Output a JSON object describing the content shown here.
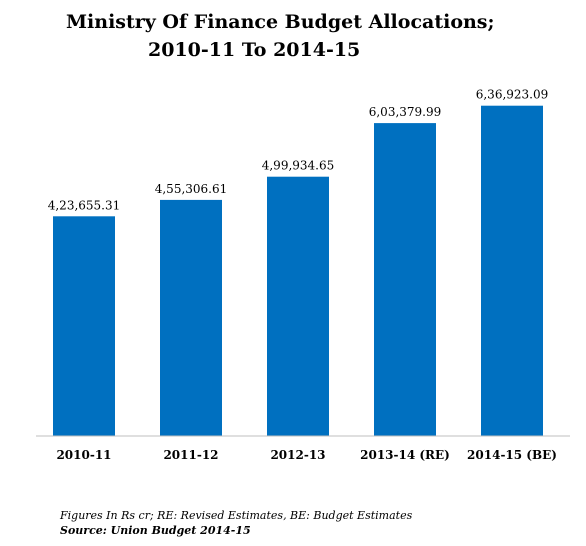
{
  "title_line1": "Ministry Of Finance Budget Allocations;",
  "title_line2": "2010-11 To 2014-15",
  "footnote": "Figures In Rs cr; RE: Revised Estimates, BE: Budget Estimates",
  "source": "Source: Union Budget 2014-15",
  "bar_color": "#0070C0",
  "chart_data": {
    "type": "bar",
    "title": "Ministry Of Finance Budget Allocations; 2010-11 To 2014-15",
    "xlabel": "",
    "ylabel": "",
    "categories": [
      "2010-11",
      "2011-12",
      "2012-13",
      "2013-14 (RE)",
      "2014-15 (BE)"
    ],
    "values": [
      423655.31,
      455306.61,
      499934.65,
      603379.99,
      636923.09
    ],
    "data_labels": [
      "4,23,655.31",
      "4,55,306.61",
      "4,99,934.65",
      "6,03,379.99",
      "6,36,923.09"
    ],
    "ylim": [
      0,
      700000
    ],
    "grid": false,
    "legend": "none"
  }
}
